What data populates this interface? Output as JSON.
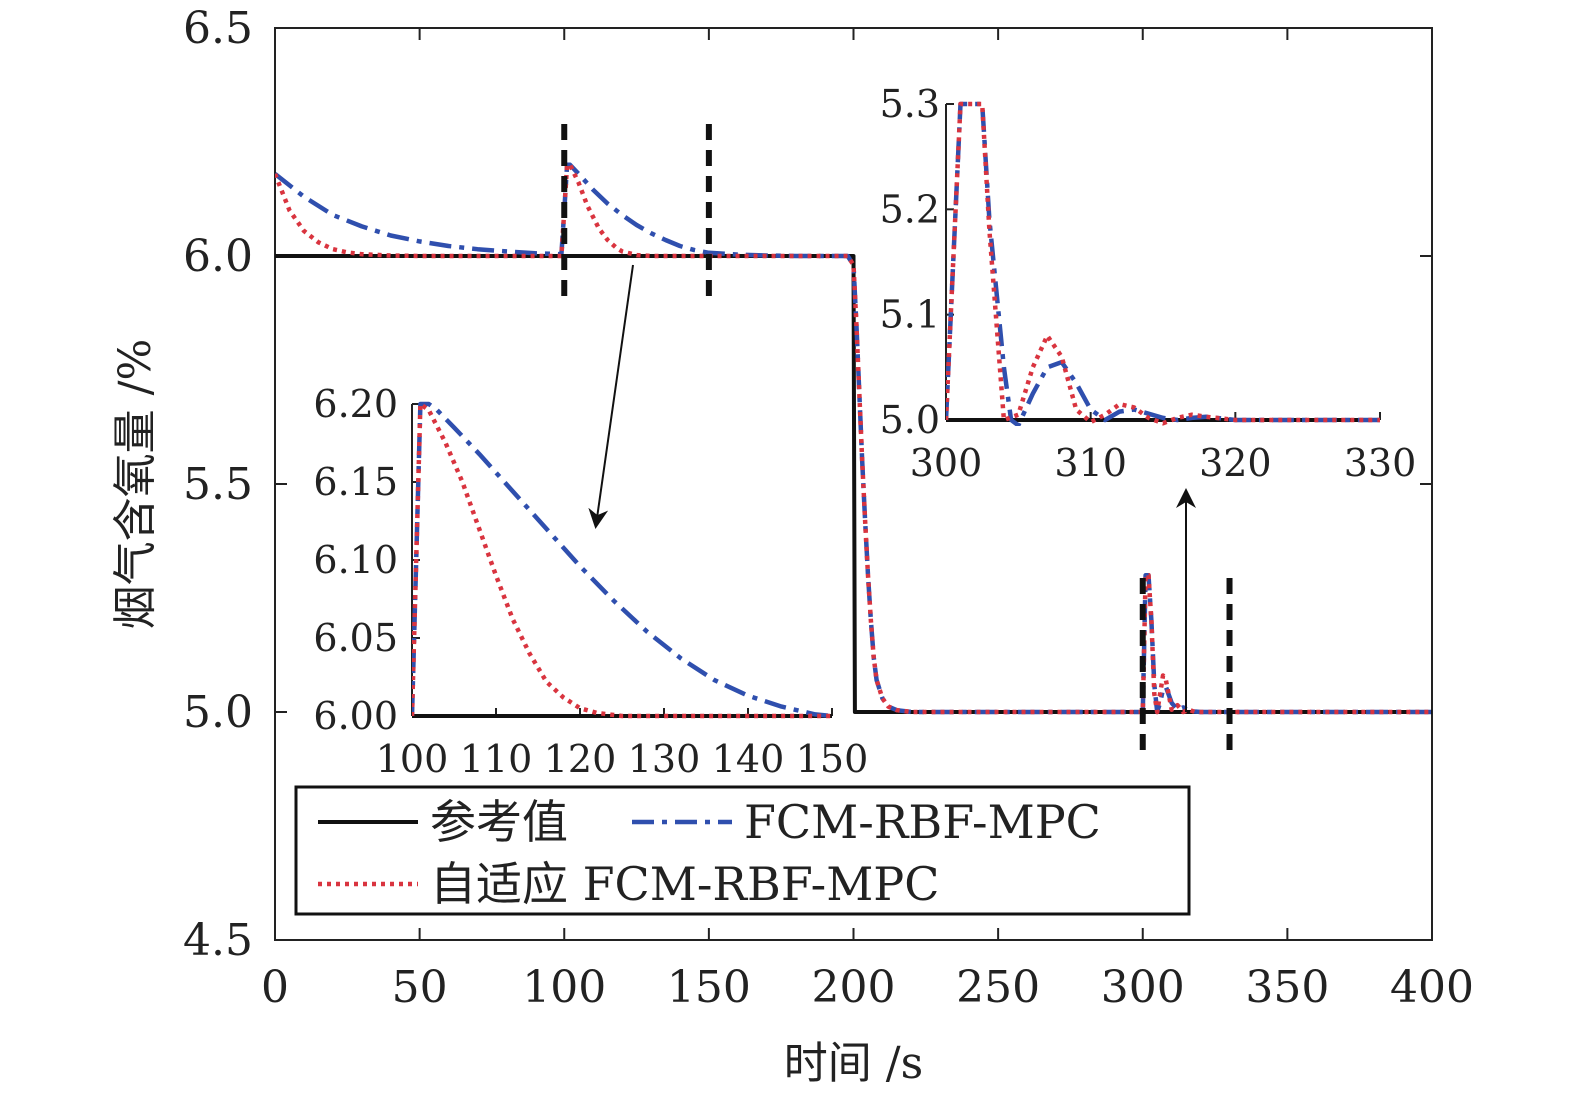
{
  "chart_data": [
    {
      "type": "line",
      "title": "",
      "xlabel": "时间 /s",
      "ylabel": "烟气含氧量 /%",
      "xlim": [
        0,
        400
      ],
      "ylim": [
        4.5,
        6.5
      ],
      "xticks": [
        "0",
        "50",
        "100",
        "150",
        "200",
        "250",
        "300",
        "350",
        "400"
      ],
      "yticks": [
        "4.5",
        "5.0",
        "5.5",
        "6.0",
        "6.5"
      ],
      "grid": false,
      "legend_position": "bottom-left",
      "series": [
        {
          "name": "参考值",
          "color": "#111111",
          "style": "solid",
          "x": [
            0,
            200,
            200.5,
            400
          ],
          "y": [
            6.0,
            6.0,
            5.0,
            5.0
          ]
        },
        {
          "name": "FCM-RBF-MPC",
          "color": "#2f4fae",
          "style": "dashdot",
          "x": [
            0,
            10,
            20,
            30,
            40,
            50,
            60,
            70,
            80,
            90,
            99,
            100,
            101,
            102,
            105,
            110,
            115,
            120,
            125,
            130,
            135,
            140,
            145,
            150,
            160,
            170,
            180,
            190,
            198,
            200,
            201,
            202,
            203,
            204,
            205,
            206,
            207,
            208,
            210,
            212,
            215,
            220,
            230,
            250,
            300,
            301,
            302,
            303,
            304,
            305,
            306,
            307,
            308,
            310,
            312,
            314,
            316,
            318,
            320,
            330,
            400
          ],
          "y": [
            6.18,
            6.13,
            6.09,
            6.065,
            6.045,
            6.032,
            6.022,
            6.015,
            6.01,
            6.006,
            6.004,
            6.1,
            6.2,
            6.2,
            6.18,
            6.145,
            6.115,
            6.09,
            6.068,
            6.05,
            6.035,
            6.022,
            6.013,
            6.007,
            6.003,
            6.001,
            6.0,
            6.0,
            6.0,
            5.98,
            5.85,
            5.7,
            5.55,
            5.42,
            5.3,
            5.2,
            5.12,
            5.07,
            5.03,
            5.012,
            5.004,
            5.0,
            5.0,
            5.0,
            5.0,
            5.3,
            5.3,
            5.2,
            5.06,
            5.0,
            5.02,
            5.05,
            5.055,
            5.02,
            5.005,
            5.01,
            5.003,
            5.001,
            5.0,
            5.0,
            5.0
          ]
        },
        {
          "name": "自适应 FCM-RBF-MPC",
          "color": "#d9343f",
          "style": "dotted",
          "x": [
            0,
            5,
            10,
            15,
            20,
            25,
            30,
            40,
            50,
            99,
            100,
            101,
            102,
            105,
            108,
            110,
            112,
            115,
            118,
            120,
            125,
            130,
            140,
            150,
            198,
            200,
            201,
            202,
            203,
            204,
            205,
            206,
            207,
            208,
            210,
            212,
            215,
            220,
            230,
            250,
            300,
            301,
            302,
            303,
            304,
            305,
            306,
            307,
            308,
            310,
            312,
            314,
            316,
            318,
            320,
            330,
            400
          ],
          "y": [
            6.18,
            6.1,
            6.055,
            6.03,
            6.015,
            6.008,
            6.004,
            6.001,
            6.0,
            6.0,
            6.1,
            6.2,
            6.2,
            6.16,
            6.11,
            6.085,
            6.06,
            6.035,
            6.018,
            6.01,
            6.002,
            6.0,
            6.0,
            6.0,
            6.0,
            5.98,
            5.85,
            5.7,
            5.55,
            5.42,
            5.3,
            5.2,
            5.12,
            5.07,
            5.03,
            5.012,
            5.004,
            5.0,
            5.0,
            5.0,
            5.0,
            5.3,
            5.3,
            5.2,
            5.04,
            5.0,
            5.04,
            5.08,
            5.07,
            5.005,
            5.015,
            5.0,
            5.005,
            5.0,
            5.0,
            5.0,
            5.0
          ]
        }
      ]
    },
    {
      "type": "line",
      "title": "",
      "xlabel": "",
      "ylabel": "",
      "xlim": [
        100,
        150
      ],
      "ylim": [
        6.0,
        6.2
      ],
      "xticks": [
        "100",
        "110",
        "120",
        "130",
        "140",
        "150"
      ],
      "yticks": [
        "6.00",
        "6.05",
        "6.10",
        "6.15",
        "6.20"
      ],
      "grid": false,
      "series": [
        {
          "name": "参考值",
          "color": "#111111",
          "style": "solid",
          "x": [
            100,
            150
          ],
          "y": [
            6.0,
            6.0
          ]
        },
        {
          "name": "FCM-RBF-MPC",
          "color": "#2f4fae",
          "style": "dashdot",
          "x": [
            100,
            101,
            102,
            103,
            105,
            108,
            110,
            113,
            116,
            120,
            124,
            128,
            132,
            136,
            140,
            144,
            148,
            150
          ],
          "y": [
            6.0,
            6.2,
            6.2,
            6.196,
            6.185,
            6.168,
            6.156,
            6.138,
            6.12,
            6.096,
            6.074,
            6.054,
            6.037,
            6.023,
            6.013,
            6.006,
            6.001,
            6.0
          ]
        },
        {
          "name": "自适应 FCM-RBF-MPC",
          "color": "#d9343f",
          "style": "dotted",
          "x": [
            100,
            101,
            102,
            104,
            106,
            108,
            110,
            112,
            114,
            116,
            118,
            120,
            122,
            125,
            130,
            140,
            150
          ],
          "y": [
            6.0,
            6.2,
            6.196,
            6.175,
            6.15,
            6.12,
            6.09,
            6.062,
            6.04,
            6.022,
            6.012,
            6.005,
            6.002,
            6.0,
            6.0,
            6.0,
            6.0
          ]
        }
      ]
    },
    {
      "type": "line",
      "title": "",
      "xlabel": "",
      "ylabel": "",
      "xlim": [
        300,
        330
      ],
      "ylim": [
        5.0,
        5.3
      ],
      "xticks": [
        "300",
        "310",
        "320",
        "330"
      ],
      "yticks": [
        "5.0",
        "5.1",
        "5.2",
        "5.3"
      ],
      "grid": false,
      "series": [
        {
          "name": "参考值",
          "color": "#111111",
          "style": "solid",
          "x": [
            300,
            330
          ],
          "y": [
            5.0,
            5.0
          ]
        },
        {
          "name": "FCM-RBF-MPC",
          "color": "#2f4fae",
          "style": "dashdot",
          "x": [
            300,
            300.5,
            301,
            302,
            302.5,
            303,
            304,
            304.5,
            305,
            306,
            307,
            308,
            309,
            310,
            311,
            312,
            313,
            314,
            315,
            316,
            317,
            318,
            320,
            330
          ],
          "y": [
            5.0,
            5.15,
            5.3,
            5.3,
            5.3,
            5.19,
            5.05,
            5.0,
            4.995,
            5.025,
            5.05,
            5.055,
            5.035,
            5.01,
            5.0,
            5.008,
            5.01,
            5.006,
            5.002,
            5.0,
            5.002,
            5.003,
            5.0,
            5.0
          ]
        },
        {
          "name": "自适应 FCM-RBF-MPC",
          "color": "#d9343f",
          "style": "dotted",
          "x": [
            300,
            300.5,
            301,
            302,
            302.5,
            303,
            304,
            305,
            306,
            307,
            308,
            309,
            310,
            311,
            312,
            313,
            314,
            315,
            316,
            317,
            318,
            320,
            330
          ],
          "y": [
            5.0,
            5.15,
            5.3,
            5.3,
            5.3,
            5.18,
            5.0,
            5.005,
            5.05,
            5.08,
            5.06,
            5.01,
            4.998,
            5.005,
            5.015,
            5.012,
            5.002,
            4.997,
            5.002,
            5.005,
            5.003,
            5.0,
            5.0
          ]
        }
      ]
    }
  ]
}
